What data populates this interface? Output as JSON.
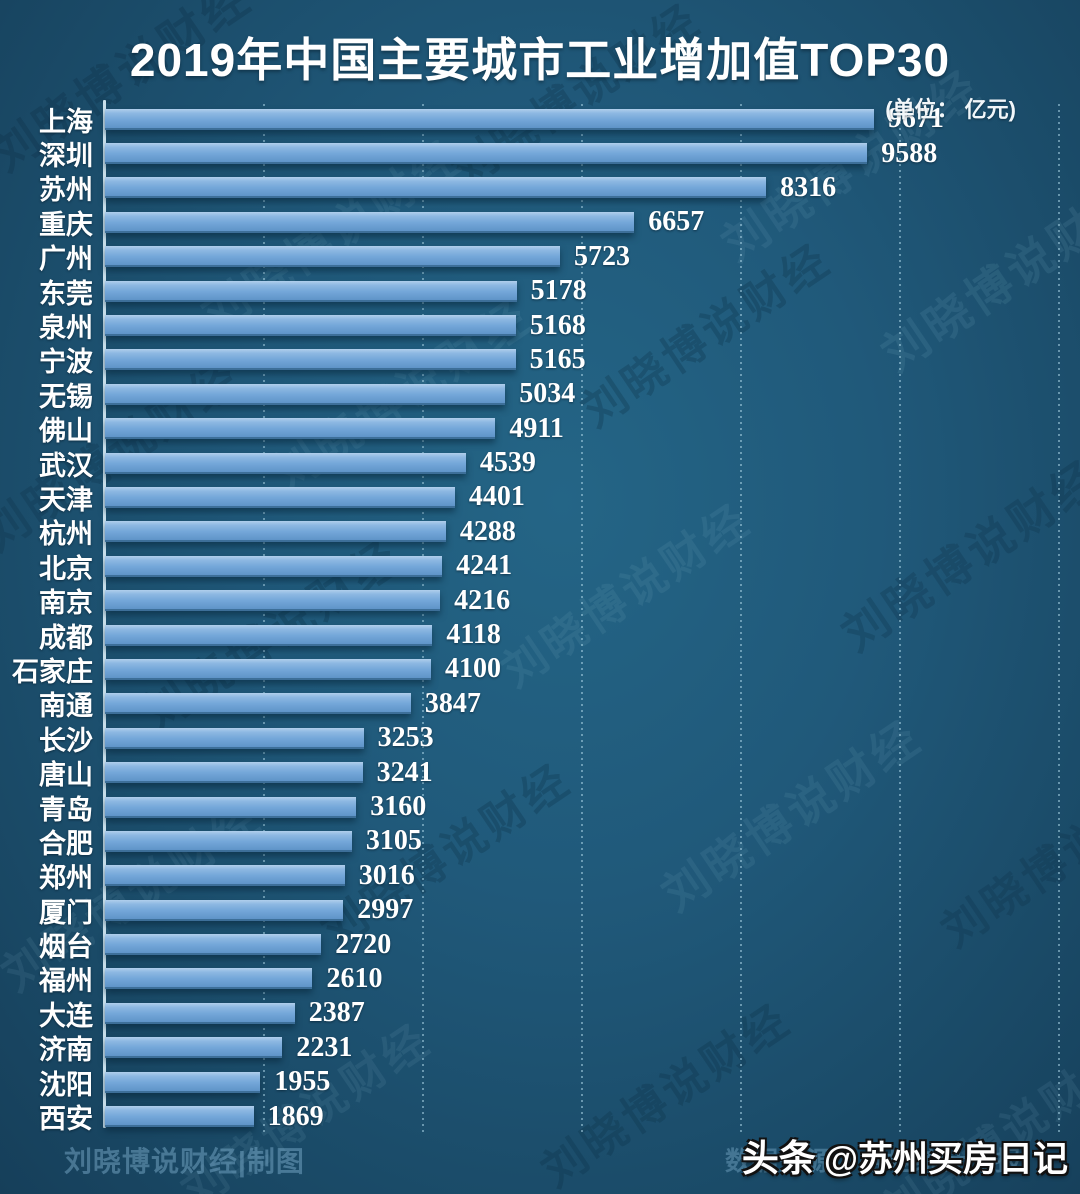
{
  "title": "2019年中国主要城市工业增加值TOP30",
  "subtitle": "(单位： 亿元)",
  "footer": {
    "left": "刘晓博说财经|制图",
    "right": "数据来源：各地统计公报",
    "watermark_bold": "头条",
    "watermark_rest": "@苏州买房日记"
  },
  "background_watermark_text": "刘晓博说财经",
  "colors": {
    "bar_light": "#b0cfec",
    "bar_mid": "#74a7d9",
    "bar_dark": "#5f94c8",
    "bar_edge": "#3d6f99",
    "background_center": "#246586",
    "background_edge": "#163f5a",
    "gridline": "#a8d2e4",
    "axis": "#c9e0ec",
    "value_text": "#ffffff"
  },
  "chart_data": {
    "type": "bar",
    "orientation": "horizontal",
    "title": "2019年中国主要城市工业增加值TOP30",
    "unit": "亿元",
    "xlabel": "",
    "ylabel": "",
    "xlim": [
      0,
      12000
    ],
    "gridline_interval": 2000,
    "grid": true,
    "legend": false,
    "categories": [
      "上海",
      "深圳",
      "苏州",
      "重庆",
      "广州",
      "东莞",
      "泉州",
      "宁波",
      "无锡",
      "佛山",
      "武汉",
      "天津",
      "杭州",
      "北京",
      "南京",
      "成都",
      "石家庄",
      "南通",
      "长沙",
      "唐山",
      "青岛",
      "合肥",
      "郑州",
      "厦门",
      "烟台",
      "福州",
      "大连",
      "济南",
      "沈阳",
      "西安"
    ],
    "values": [
      9671,
      9588,
      8316,
      6657,
      5723,
      5178,
      5168,
      5165,
      5034,
      4911,
      4539,
      4401,
      4288,
      4241,
      4216,
      4118,
      4100,
      3847,
      3253,
      3241,
      3160,
      3105,
      3016,
      2997,
      2720,
      2610,
      2387,
      2231,
      1955,
      1869
    ]
  }
}
